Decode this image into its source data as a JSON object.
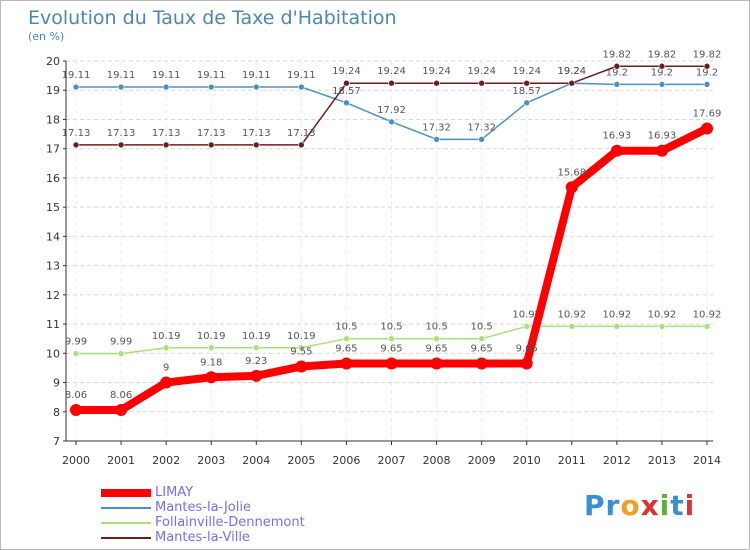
{
  "chart_data": {
    "type": "line",
    "title": "Evolution du Taux de Taxe d'Habitation",
    "subtitle": "(en %)",
    "x": [
      "2000",
      "2001",
      "2002",
      "2003",
      "2004",
      "2005",
      "2006",
      "2007",
      "2008",
      "2009",
      "2010",
      "2011",
      "2012",
      "2013",
      "2014"
    ],
    "ylim": [
      7,
      20
    ],
    "yticks": [
      "7",
      "8",
      "9",
      "10",
      "11",
      "12",
      "13",
      "14",
      "15",
      "16",
      "17",
      "18",
      "19",
      "20"
    ],
    "grid": "horizontal",
    "legend_position": "bottom-left",
    "series": [
      {
        "name": "Mantes-la-Jolie",
        "color": "#4a90c8",
        "values": [
          19.11,
          19.11,
          19.11,
          19.11,
          19.11,
          19.11,
          18.57,
          17.92,
          17.32,
          17.32,
          18.57,
          19.24,
          19.2,
          19.2,
          19.2
        ],
        "labels": [
          "19.11",
          "19.11",
          "19.11",
          "19.11",
          "19.11",
          "19.11",
          "18.57",
          "17.92",
          "17.32",
          "17.32",
          "18.57",
          "19.24",
          "19.2",
          "19.2",
          "19.2"
        ]
      },
      {
        "name": "Mantes-la-Ville",
        "color": "#6b1e1e",
        "values": [
          17.13,
          17.13,
          17.13,
          17.13,
          17.13,
          17.13,
          19.24,
          19.24,
          19.24,
          19.24,
          19.24,
          19.24,
          19.82,
          19.82,
          19.82
        ],
        "labels": [
          "17.13",
          "17.13",
          "17.13",
          "17.13",
          "17.13",
          "17.13",
          "19.24",
          "19.24",
          "19.24",
          "19.24",
          "19.24",
          "19.24",
          "19.82",
          "19.82",
          "19.82"
        ]
      },
      {
        "name": "Follainville-Dennemont",
        "color": "#a8e07a",
        "values": [
          9.99,
          9.99,
          10.19,
          10.19,
          10.19,
          10.19,
          10.5,
          10.5,
          10.5,
          10.5,
          10.92,
          10.92,
          10.92,
          10.92,
          10.92
        ],
        "labels": [
          "9.99",
          "9.99",
          "10.19",
          "10.19",
          "10.19",
          "10.19",
          "10.5",
          "10.5",
          "10.5",
          "10.5",
          "10.92",
          "10.92",
          "10.92",
          "10.92",
          "10.92"
        ]
      },
      {
        "name": "LIMAY",
        "color": "#ff0000",
        "values": [
          8.06,
          8.06,
          9,
          9.18,
          9.23,
          9.55,
          9.65,
          9.65,
          9.65,
          9.65,
          9.65,
          15.68,
          16.93,
          16.93,
          17.69
        ],
        "labels": [
          "8.06",
          "8.06",
          "9",
          "9.18",
          "9.23",
          "9.55",
          "9.65",
          "9.65",
          "9.65",
          "9.65",
          "9.65",
          "15.68",
          "16.93",
          "16.93",
          "17.69"
        ]
      }
    ],
    "legend": [
      "LIMAY",
      "Mantes-la-Jolie",
      "Follainville-Dennemont",
      "Mantes-la-Ville"
    ]
  },
  "logo": {
    "text": "Proxiti",
    "letters": [
      {
        "ch": "P",
        "color": "#3a8fd0"
      },
      {
        "ch": "r",
        "color": "#3a8fd0"
      },
      {
        "ch": "o",
        "color": "#f0a020"
      },
      {
        "ch": "x",
        "color": "#e03030"
      },
      {
        "ch": "i",
        "color": "#60b040"
      },
      {
        "ch": "t",
        "color": "#3a8fd0"
      },
      {
        "ch": "i",
        "color": "#e03030"
      }
    ]
  }
}
